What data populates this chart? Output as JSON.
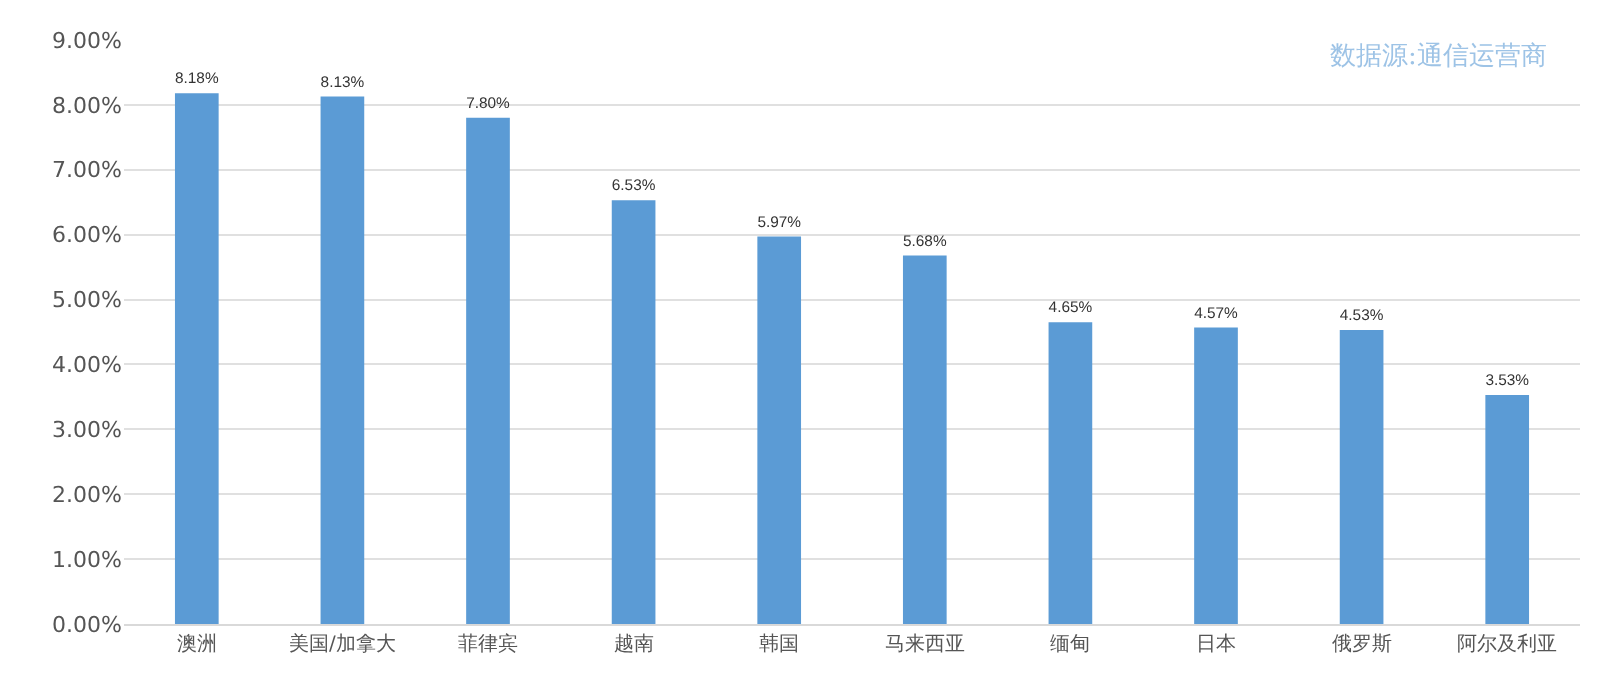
{
  "chart_data": {
    "type": "bar",
    "categories": [
      "澳洲",
      "美国/加拿大",
      "菲律宾",
      "越南",
      "韩国",
      "马来西亚",
      "缅甸",
      "日本",
      "俄罗斯",
      "阿尔及利亚"
    ],
    "values": [
      8.18,
      8.13,
      7.8,
      6.53,
      5.97,
      5.68,
      4.65,
      4.57,
      4.53,
      3.53
    ],
    "value_labels": [
      "8.18%",
      "8.13%",
      "7.80%",
      "6.53%",
      "5.97%",
      "5.68%",
      "4.65%",
      "4.57%",
      "4.53%",
      "3.53%"
    ],
    "color": "#5b9bd5",
    "ylim": [
      0,
      9
    ],
    "yticks": [
      {
        "value": 0,
        "label": "0.00%"
      },
      {
        "value": 1,
        "label": "1.00%"
      },
      {
        "value": 2,
        "label": "2.00%"
      },
      {
        "value": 3,
        "label": "3.00%"
      },
      {
        "value": 4,
        "label": "4.00%"
      },
      {
        "value": 5,
        "label": "5.00%"
      },
      {
        "value": 6,
        "label": "6.00%"
      },
      {
        "value": 7,
        "label": "7.00%"
      },
      {
        "value": 8,
        "label": "8.00%"
      },
      {
        "value": 9,
        "label": "9.00%"
      }
    ],
    "grid": true,
    "annotations": [
      "数据源:通信运营商"
    ]
  }
}
